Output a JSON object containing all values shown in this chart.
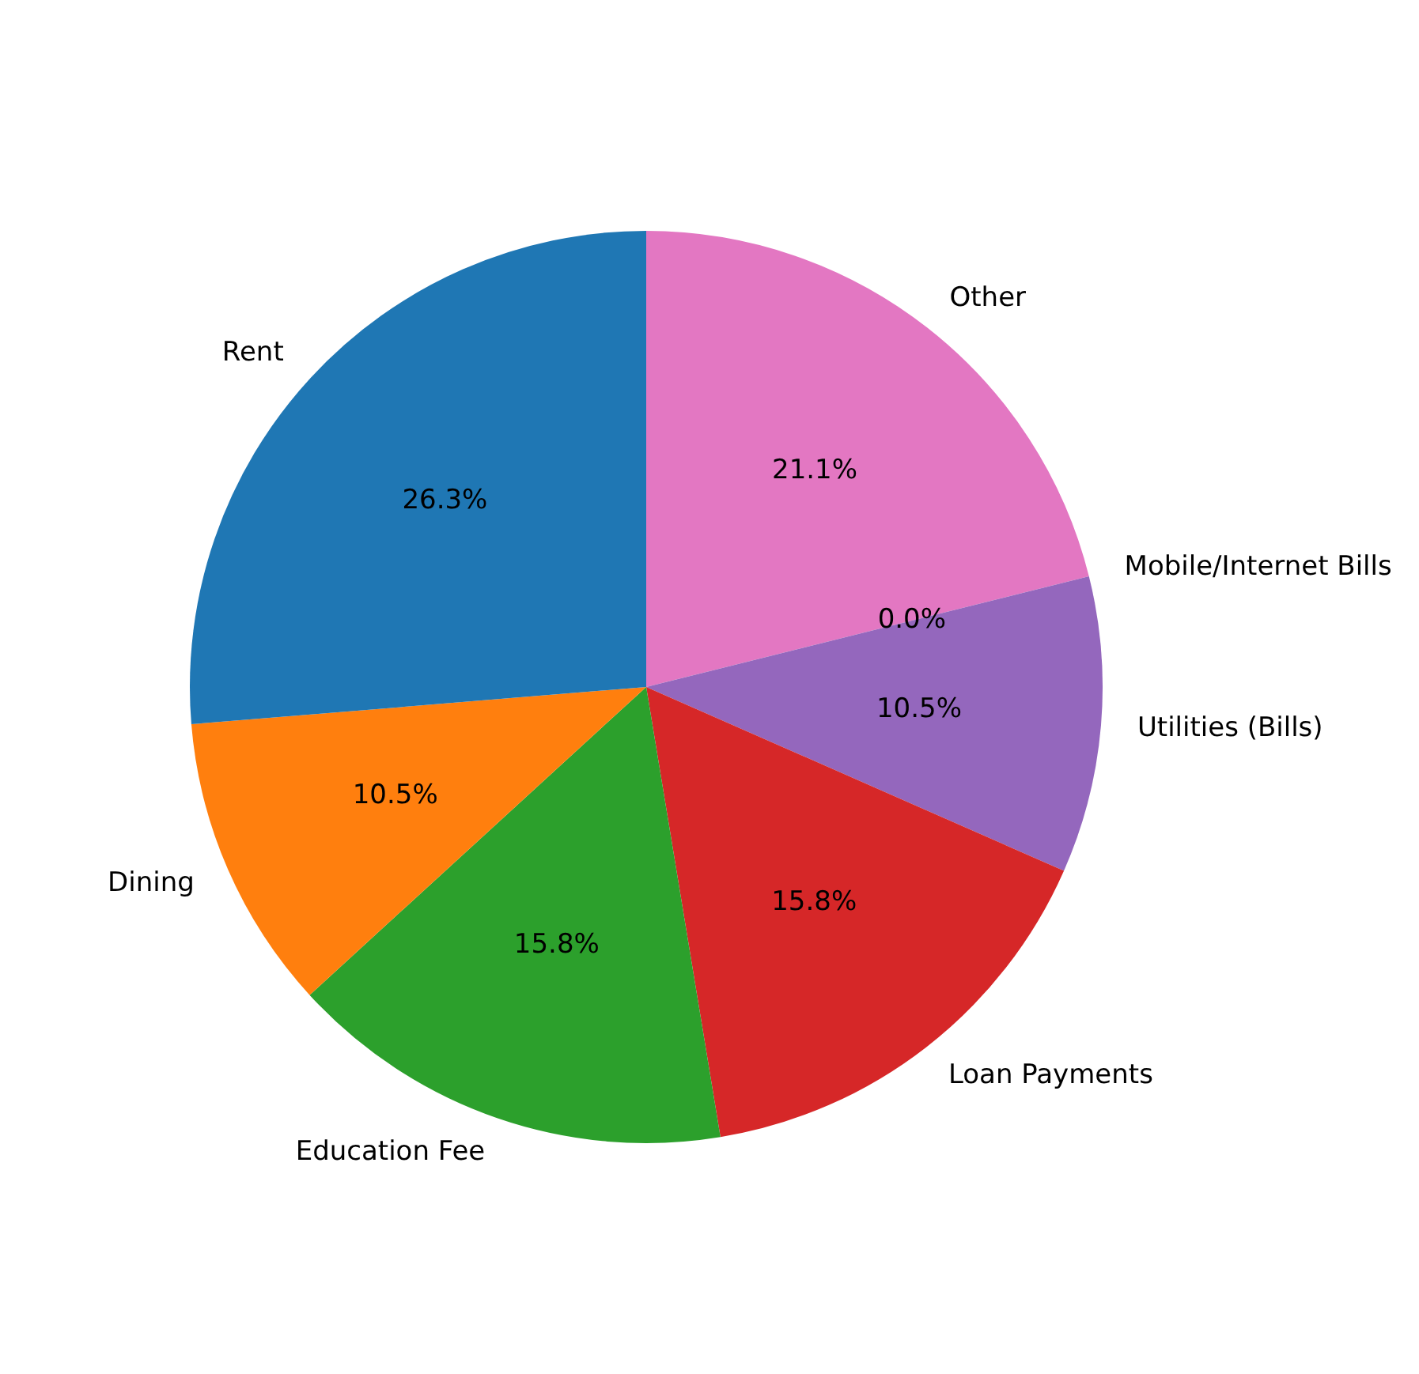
{
  "chart_data": {
    "type": "pie",
    "categories": [
      "Other",
      "Mobile/Internet Bills",
      "Utilities (Bills)",
      "Loan Payments",
      "Education Fee",
      "Dining",
      "Rent"
    ],
    "values": [
      21.1,
      0.0,
      10.5,
      15.8,
      15.8,
      10.5,
      26.3
    ],
    "colors": [
      "#e377c2",
      "#8c564b",
      "#9467bd",
      "#d62728",
      "#2ca02c",
      "#ff7f0e",
      "#1f77b4"
    ],
    "value_labels": [
      "21.1%",
      "0.0%",
      "10.5%",
      "15.8%",
      "15.8%",
      "10.5%",
      "26.3%"
    ]
  }
}
